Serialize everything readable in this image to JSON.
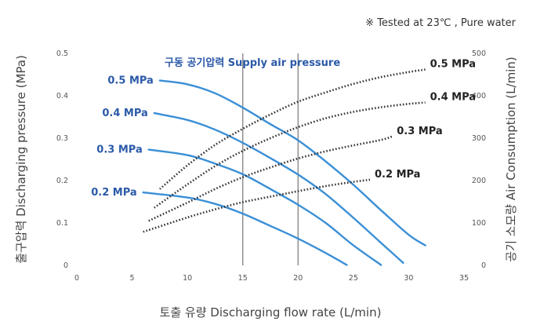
{
  "note": "※  Tested at  23℃ , Pure water",
  "chart_data": {
    "type": "line",
    "title": "구동 공기압력 Supply air pressure",
    "xlabel": "토출 유량 Discharging flow rate (L/min)",
    "ylabel": "출구압력 Discharging pressure (MPa)",
    "y2label": "공기 소모량 Air Consumption (L/min)",
    "xlim": [
      0,
      35
    ],
    "ylim": [
      0,
      0.5
    ],
    "y2lim": [
      0,
      500
    ],
    "xticks": [
      "0",
      "5",
      "10",
      "15",
      "20",
      "25",
      "30",
      "35"
    ],
    "yticks": [
      "0",
      "0.1",
      "0.2",
      "0.3",
      "0.4",
      "0.5"
    ],
    "y2ticks": [
      "0",
      "100",
      "200",
      "300",
      "400",
      "500"
    ],
    "reference_lines_x": [
      15,
      20
    ],
    "grid": false,
    "colors": {
      "pressure": "#3a8fd6",
      "consumption": "#333333"
    },
    "pressure_series": [
      {
        "name": "0.5 MPa",
        "points": [
          [
            7.5,
            0.436
          ],
          [
            10,
            0.427
          ],
          [
            12.5,
            0.406
          ],
          [
            15,
            0.372
          ],
          [
            17.5,
            0.333
          ],
          [
            20,
            0.295
          ],
          [
            22.5,
            0.245
          ],
          [
            25,
            0.19
          ],
          [
            27.5,
            0.13
          ],
          [
            30,
            0.072
          ],
          [
            31.5,
            0.047
          ]
        ]
      },
      {
        "name": "0.4 MPa",
        "points": [
          [
            7,
            0.359
          ],
          [
            10,
            0.343
          ],
          [
            12.5,
            0.32
          ],
          [
            15,
            0.289
          ],
          [
            17.5,
            0.253
          ],
          [
            20,
            0.214
          ],
          [
            22.5,
            0.168
          ],
          [
            25,
            0.112
          ],
          [
            27.5,
            0.053
          ],
          [
            29.5,
            0.006
          ]
        ]
      },
      {
        "name": "0.3 MPa",
        "points": [
          [
            6.5,
            0.273
          ],
          [
            10,
            0.26
          ],
          [
            12.5,
            0.24
          ],
          [
            15,
            0.215
          ],
          [
            17.5,
            0.18
          ],
          [
            20,
            0.143
          ],
          [
            22.5,
            0.1
          ],
          [
            25,
            0.047
          ],
          [
            27.5,
            0.001
          ]
        ]
      },
      {
        "name": "0.2 MPa",
        "points": [
          [
            6,
            0.172
          ],
          [
            10,
            0.16
          ],
          [
            12.5,
            0.145
          ],
          [
            15,
            0.122
          ],
          [
            17.5,
            0.093
          ],
          [
            20,
            0.063
          ],
          [
            22.5,
            0.029
          ],
          [
            24.4,
            0.001
          ]
        ]
      }
    ],
    "consumption_series": [
      {
        "name": "0.5 MPa",
        "points": [
          [
            7.5,
            180
          ],
          [
            10,
            236
          ],
          [
            12.5,
            284
          ],
          [
            15,
            322
          ],
          [
            17.5,
            356
          ],
          [
            20,
            386
          ],
          [
            22.5,
            408
          ],
          [
            25,
            428
          ],
          [
            27.5,
            444
          ],
          [
            30,
            456
          ],
          [
            31.5,
            462
          ]
        ]
      },
      {
        "name": "0.4 MPa",
        "points": [
          [
            7,
            136
          ],
          [
            10,
            191
          ],
          [
            12.5,
            234
          ],
          [
            15,
            270
          ],
          [
            17.5,
            300
          ],
          [
            20,
            326
          ],
          [
            22.5,
            347
          ],
          [
            25,
            362
          ],
          [
            27.5,
            373
          ],
          [
            30,
            381
          ],
          [
            31.5,
            384
          ]
        ]
      },
      {
        "name": "0.3 MPa",
        "points": [
          [
            6.5,
            105
          ],
          [
            10,
            148
          ],
          [
            12.5,
            180
          ],
          [
            15,
            208
          ],
          [
            17.5,
            231
          ],
          [
            20,
            252
          ],
          [
            22.5,
            269
          ],
          [
            25,
            283
          ],
          [
            27.5,
            296
          ],
          [
            28.5,
            304
          ]
        ]
      },
      {
        "name": "0.2 MPa",
        "points": [
          [
            6,
            79
          ],
          [
            10,
            113
          ],
          [
            12.5,
            132
          ],
          [
            15,
            149
          ],
          [
            17.5,
            162
          ],
          [
            20,
            175
          ],
          [
            22.5,
            187
          ],
          [
            25,
            197
          ],
          [
            26.5,
            202
          ]
        ]
      }
    ]
  }
}
